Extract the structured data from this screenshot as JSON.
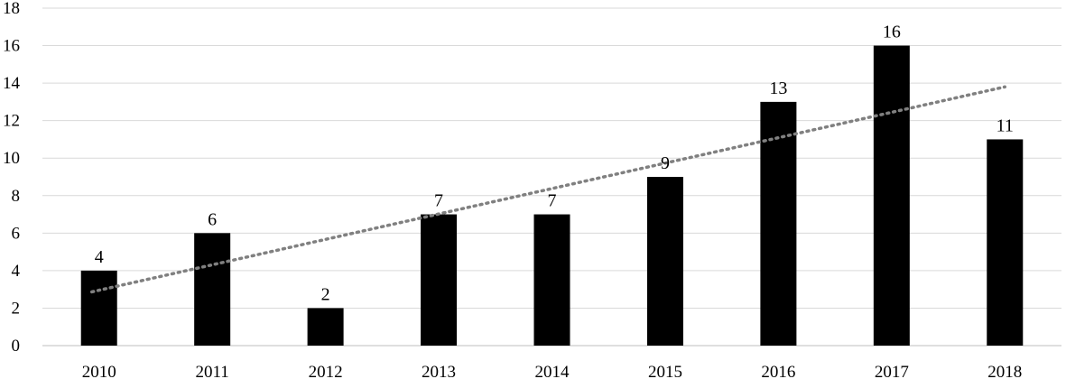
{
  "chart_data": {
    "type": "bar",
    "categories": [
      "2010",
      "2011",
      "2012",
      "2013",
      "2014",
      "2015",
      "2016",
      "2017",
      "2018"
    ],
    "values": [
      4,
      6,
      2,
      7,
      7,
      9,
      13,
      16,
      11
    ],
    "data_labels": [
      "4",
      "6",
      "2",
      "7",
      "7",
      "9",
      "13",
      "16",
      "11"
    ],
    "ylim": [
      0,
      18
    ],
    "yticks": [
      0,
      2,
      4,
      6,
      8,
      10,
      12,
      14,
      16,
      18
    ],
    "ytick_labels": [
      "0",
      "2",
      "4",
      "6",
      "8",
      "10",
      "12",
      "14",
      "16",
      "18"
    ],
    "grid": true,
    "trendline": {
      "type": "linear",
      "style": "dotted"
    },
    "colors": {
      "bar": "#000000",
      "trendline": "#808080",
      "grid": "#d9d9d9"
    }
  }
}
